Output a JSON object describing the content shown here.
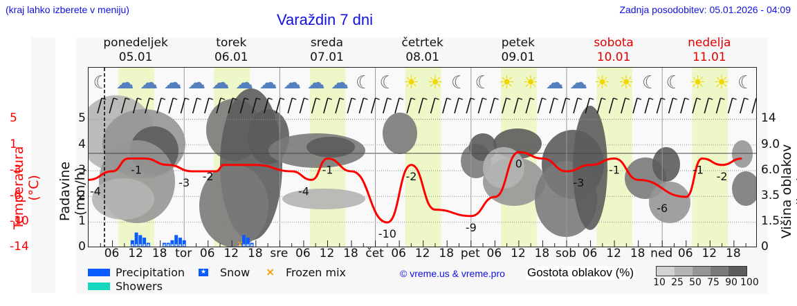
{
  "header": {
    "note": "(kraj lahko izberete v meniju)",
    "title": "Varaždin 7 dni",
    "last_update": "Zadnja posodobitev: 05.01.2026 - 04:09"
  },
  "days": [
    {
      "name": "ponedeljek",
      "date": "05.01",
      "weekend": false
    },
    {
      "name": "torek",
      "date": "06.01",
      "weekend": false
    },
    {
      "name": "sreda",
      "date": "07.01",
      "weekend": false
    },
    {
      "name": "četrtek",
      "date": "08.01",
      "weekend": false
    },
    {
      "name": "petek",
      "date": "09.01",
      "weekend": false
    },
    {
      "name": "sobota",
      "date": "10.01",
      "weekend": true
    },
    {
      "name": "nedelja",
      "date": "11.01",
      "weekend": true
    }
  ],
  "axes": {
    "left_title_temp": "Temperatura (°C)",
    "left_title_prec": "Padavine (mm/h)",
    "right_title": "Višina oblakov (km)",
    "temp_ticks": [
      "5",
      "1",
      "-3",
      "-6",
      "-10",
      "-14"
    ],
    "prec_ticks": [
      "5",
      "4",
      "3",
      "2",
      "1",
      "0"
    ],
    "cloud_ticks": [
      "14",
      "9.0",
      "6.0",
      "3.5",
      "1.5",
      "0"
    ],
    "x_ticks": [
      "06",
      "12",
      "18",
      "tor",
      "06",
      "12",
      "18",
      "sre",
      "06",
      "12",
      "18",
      "čet",
      "06",
      "12",
      "18",
      "pet",
      "06",
      "12",
      "18",
      "sob",
      "06",
      "12",
      "18",
      "ned",
      "06",
      "12",
      "18"
    ]
  },
  "legend": {
    "precipitation": "Precipitation",
    "snow": "Snow",
    "frozen_mix": "Frozen mix",
    "showers": "Showers",
    "credit": "© vreme.us & vreme.pro",
    "cloud_density_title": "Gostota oblakov (%)",
    "cloud_density_levels": [
      "10",
      "25",
      "50",
      "75",
      "90",
      "100"
    ]
  },
  "colors": {
    "temperature": "#ff0000",
    "precipitation": "#0a5cff",
    "showers": "#16d6c0",
    "frozen_mix": "#f5a00a",
    "daylight": "#eef7c8",
    "link": "#1010e0",
    "weekend": "#e00000",
    "cloud_scale": [
      "#d2d2d2",
      "#b4b4b4",
      "#969696",
      "#7a7a7a",
      "#5c5c5c"
    ]
  },
  "chart_data": {
    "type": "line",
    "title": "Varaždin 7 dni",
    "xlabel": "",
    "ylabel": "Temperatura (°C)",
    "secondary_ylabels": [
      "Padavine (mm/h)",
      "Višina oblakov (km)"
    ],
    "x_range": [
      "05.01 00:00",
      "11.01 ~20:00"
    ],
    "now_marker": "05.01 ~04:00",
    "temperature_series": {
      "name": "Temperatura (°C)",
      "points": [
        {
          "t": "05.01 00",
          "v": -4
        },
        {
          "t": "05.01 06",
          "v": -3
        },
        {
          "t": "05.01 10",
          "v": -1
        },
        {
          "t": "05.01 14",
          "v": -1
        },
        {
          "t": "05.01 20",
          "v": -2
        },
        {
          "t": "06.01 02",
          "v": -3
        },
        {
          "t": "06.01 08",
          "v": -3
        },
        {
          "t": "06.01 10",
          "v": -2
        },
        {
          "t": "06.01 18",
          "v": -2
        },
        {
          "t": "07.01 03",
          "v": -3
        },
        {
          "t": "07.01 08",
          "v": -4
        },
        {
          "t": "07.01 12",
          "v": -1
        },
        {
          "t": "07.01 18",
          "v": -3
        },
        {
          "t": "08.01 03",
          "v": -10
        },
        {
          "t": "08.01 09",
          "v": -2
        },
        {
          "t": "08.01 15",
          "v": -8
        },
        {
          "t": "09.01 00",
          "v": -9
        },
        {
          "t": "09.01 06",
          "v": -6
        },
        {
          "t": "09.01 12",
          "v": 0
        },
        {
          "t": "09.01 18",
          "v": -1
        },
        {
          "t": "10.01 00",
          "v": -3
        },
        {
          "t": "10.01 06",
          "v": -2
        },
        {
          "t": "10.01 12",
          "v": -1
        },
        {
          "t": "10.01 18",
          "v": -4
        },
        {
          "t": "11.01 06",
          "v": -6
        },
        {
          "t": "11.01 10",
          "v": -1
        },
        {
          "t": "11.01 15",
          "v": -2
        },
        {
          "t": "11.01 20",
          "v": -1
        }
      ],
      "labels": [
        {
          "t": "05.01 00",
          "text": "-4"
        },
        {
          "t": "05.01 12",
          "text": "-1"
        },
        {
          "t": "05.01 24",
          "text": "-3"
        },
        {
          "t": "06.01 06",
          "text": "-2"
        },
        {
          "t": "07.01 06",
          "text": "-4"
        },
        {
          "t": "07.01 12",
          "text": "-1"
        },
        {
          "t": "08.01 03",
          "text": "-10"
        },
        {
          "t": "08.01 09",
          "text": "-2"
        },
        {
          "t": "09.01 00",
          "text": "-9"
        },
        {
          "t": "09.01 12",
          "text": "0"
        },
        {
          "t": "10.01 03",
          "text": "-3"
        },
        {
          "t": "10.01 12",
          "text": "-1"
        },
        {
          "t": "11.01 00",
          "text": "-6"
        },
        {
          "t": "11.01 09",
          "text": "-1"
        },
        {
          "t": "11.01 15",
          "text": "-2"
        }
      ]
    },
    "precipitation_series": {
      "name": "Padavine (mm/h)",
      "ylim": [
        0,
        5
      ],
      "bars": [
        {
          "t": "05.01 11",
          "v": 0.3
        },
        {
          "t": "05.01 12",
          "v": 0.6
        },
        {
          "t": "05.01 13",
          "v": 0.5
        },
        {
          "t": "05.01 14",
          "v": 0.4
        },
        {
          "t": "05.01 15",
          "v": 0.2
        },
        {
          "t": "05.01 19",
          "v": 0.2
        },
        {
          "t": "05.01 20",
          "v": 0.2
        },
        {
          "t": "05.01 21",
          "v": 0.3
        },
        {
          "t": "05.01 22",
          "v": 0.5
        },
        {
          "t": "05.01 23",
          "v": 0.4
        },
        {
          "t": "06.01 00",
          "v": 0.3
        },
        {
          "t": "06.01 14",
          "v": 0.2
        },
        {
          "t": "06.01 15",
          "v": 0.5
        },
        {
          "t": "06.01 16",
          "v": 0.4
        },
        {
          "t": "06.01 17",
          "v": 0.2
        }
      ],
      "precip_type": "snow",
      "frozen_mix_at": "06.01 14"
    },
    "cloud_height_axis": {
      "ticks_km": [
        0,
        1.5,
        3.5,
        6.0,
        9.0,
        14
      ]
    },
    "legend": [
      "Precipitation",
      "Snow",
      "Frozen mix",
      "Showers"
    ],
    "grid": true
  }
}
